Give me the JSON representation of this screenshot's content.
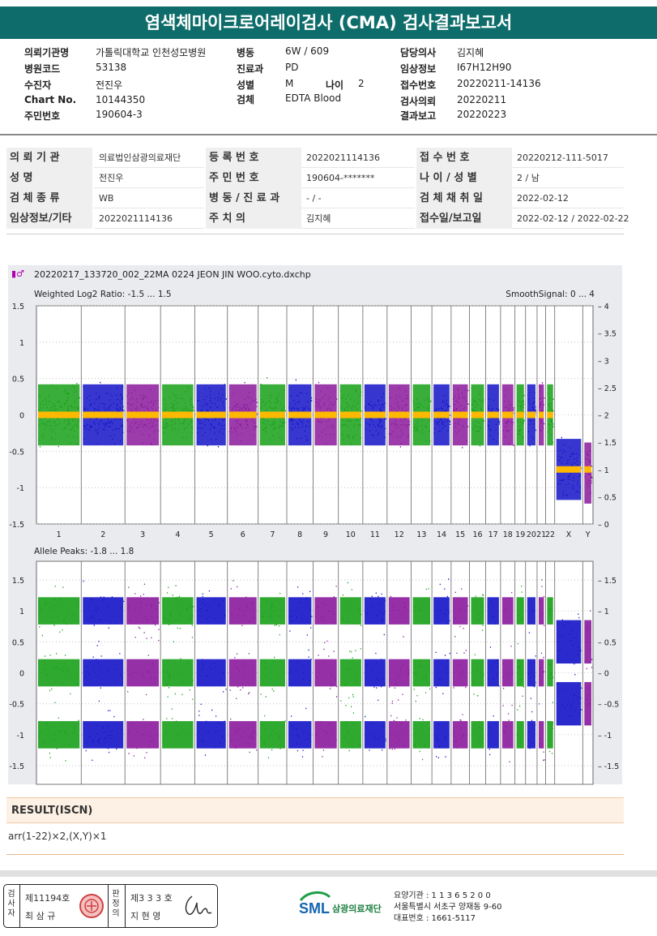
{
  "report_title": "염색체마이크로어레이검사 (CMA) 검사결과보고서",
  "header": {
    "col1": [
      {
        "label": "의뢰기관명",
        "value": "가톨릭대학교 인천성모병원"
      },
      {
        "label": "병원코드",
        "value": "53138"
      },
      {
        "label": "수진자",
        "value": "전진우"
      },
      {
        "label": "Chart No.",
        "value": "10144350"
      },
      {
        "label": "주민번호",
        "value": "190604-3"
      }
    ],
    "col2": [
      {
        "label": "병동",
        "value": "6W / 609"
      },
      {
        "label": "진료과",
        "value": "PD"
      },
      {
        "label": "성별",
        "value": "M"
      },
      {
        "label": "검체",
        "value": "EDTA Blood"
      }
    ],
    "age_label": "나이",
    "age_value": "2",
    "col3": [
      {
        "label": "담당의사",
        "value": "김지혜"
      },
      {
        "label": "임상정보",
        "value": "I67H12H90"
      },
      {
        "label": "접수번호",
        "value": "20220211-14136"
      },
      {
        "label": "검사의뢰",
        "value": "20220211"
      },
      {
        "label": "결과보고",
        "value": "20220223"
      }
    ]
  },
  "info_table": [
    [
      {
        "label": "의 뢰 기 관",
        "value": "의료법인삼광의료재단"
      },
      {
        "label": "등 록 번 호",
        "value": "2022021114136"
      },
      {
        "label": "접 수 번 호",
        "value": "20220212-111-5017"
      }
    ],
    [
      {
        "label": "성          명",
        "value": "전진우"
      },
      {
        "label": "주 민 번 호",
        "value": "190604-*******"
      },
      {
        "label": "나 이 / 성 별",
        "value": "2 / 남"
      }
    ],
    [
      {
        "label": "검 체 종 류",
        "value": "WB"
      },
      {
        "label": "병 동 / 진 료 과",
        "value": "- / -"
      },
      {
        "label": "검 체 채 취 일",
        "value": "2022-02-12"
      }
    ],
    [
      {
        "label": "임상정보/기타",
        "value": "2022021114136"
      },
      {
        "label": "주      치      의",
        "value": "김지혜"
      },
      {
        "label": "접수일/보고일",
        "value": "2022-02-12 / 2022-02-22"
      }
    ]
  ],
  "plot_file": "20220217_133720_002_22MA 0224 JEON JIN WOO.cyto.dxchp",
  "chart_data": [
    {
      "type": "scatter",
      "title": "Weighted Log2 Ratio: -1.5 ... 1.5",
      "right_title": "SmoothSignal: 0 ... 4",
      "ylim": [
        -1.5,
        1.5
      ],
      "y_ticks": [
        "1.5",
        "1",
        "0.5",
        "0",
        "-0.5",
        "-1",
        "-1.5"
      ],
      "y2lim": [
        0,
        4
      ],
      "y2_ticks": [
        "4",
        "3.5",
        "3",
        "2.5",
        "2",
        "1.5",
        "1",
        "0.5",
        "0"
      ],
      "categories": [
        "1",
        "2",
        "3",
        "4",
        "5",
        "6",
        "7",
        "8",
        "9",
        "10",
        "11",
        "12",
        "13",
        "14",
        "15",
        "16",
        "17",
        "18",
        "19",
        "20",
        "21",
        "22",
        "X",
        "Y"
      ],
      "log2_ratio_center": {
        "autosomes": 0,
        "X": -0.75,
        "Y": -0.8
      },
      "smooth_signal": {
        "autosomes": 2,
        "X": 1,
        "Y": 1
      },
      "grid": true
    },
    {
      "type": "scatter",
      "title": "Allele Peaks: -1.8 ... 1.8",
      "ylim": [
        -1.8,
        1.8
      ],
      "y_ticks": [
        "1.5",
        "1",
        "0.5",
        "0",
        "-0.5",
        "-1",
        "-1.5"
      ],
      "y2_ticks": [
        "1.5",
        "1",
        "0.5",
        "0",
        "-0.5",
        "-1",
        "-1.5"
      ],
      "allele_bands_autosomes": [
        1,
        0,
        -1
      ],
      "allele_bands_X": [
        0.5,
        -0.5
      ],
      "grid": true
    }
  ],
  "series_colors": {
    "green": "#18a018",
    "blue": "#1414c8",
    "purple": "#8b1a9c",
    "orange": "#ffb800"
  },
  "result": {
    "heading": "RESULT(ISCN)",
    "value": "arr(1-22)×2,(X,Y)×1"
  },
  "footer": {
    "tester_vert": [
      "검",
      "사",
      "자"
    ],
    "tester_no": "제11194호",
    "tester_name": "최 삼 규",
    "reviewer_vert": [
      "판",
      "정",
      "의"
    ],
    "reviewer_no": "제3 3 3 호",
    "reviewer_name": "지 현 영",
    "logo_text": "SML",
    "org_name": "삼광의료재단",
    "address_lines": [
      "요양기관 : 1 1 3 6 5 2 0 0",
      "서울특별시 서초구 양재동 9-60",
      "대표번호 : 1661-5117"
    ]
  }
}
